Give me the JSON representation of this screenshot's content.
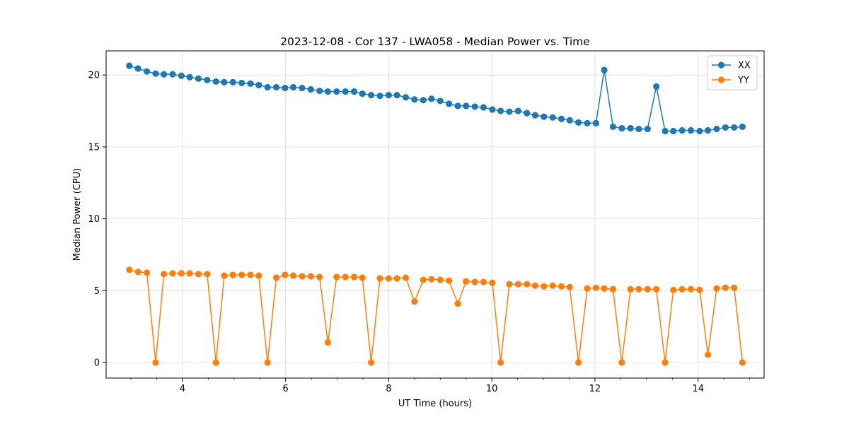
{
  "chart_data": {
    "type": "line",
    "title": "2023-12-08 - Cor 137 - LWA058 - Median Power vs. Time",
    "xlabel": "UT Time (hours)",
    "ylabel": "Median Power (CPU)",
    "xlim": [
      2.52,
      15.28
    ],
    "ylim": [
      -1.08,
      21.68
    ],
    "xticks": [
      4,
      6,
      8,
      10,
      12,
      14
    ],
    "xtick_labels": [
      "4",
      "6",
      "8",
      "10",
      "12",
      "14"
    ],
    "yticks": [
      0,
      5,
      10,
      15,
      20
    ],
    "ytick_labels": [
      "0",
      "5",
      "10",
      "15",
      "20"
    ],
    "grid": true,
    "legend_position": "top-right",
    "x": [
      2.97,
      3.14,
      3.31,
      3.48,
      3.64,
      3.81,
      3.98,
      4.14,
      4.31,
      4.48,
      4.65,
      4.81,
      4.98,
      5.15,
      5.32,
      5.48,
      5.65,
      5.82,
      5.99,
      6.15,
      6.32,
      6.49,
      6.66,
      6.82,
      6.99,
      7.16,
      7.33,
      7.49,
      7.66,
      7.83,
      8.0,
      8.16,
      8.33,
      8.5,
      8.67,
      8.83,
      9.0,
      9.17,
      9.34,
      9.5,
      9.67,
      9.84,
      10.01,
      10.17,
      10.34,
      10.51,
      10.68,
      10.84,
      11.01,
      11.18,
      11.35,
      11.51,
      11.68,
      11.85,
      12.02,
      12.18,
      12.35,
      12.52,
      12.69,
      12.85,
      13.02,
      13.19,
      13.36,
      13.52,
      13.69,
      13.86,
      14.03,
      14.19,
      14.36,
      14.53,
      14.7,
      14.86
    ],
    "series": [
      {
        "name": "XX",
        "color": "#1f77b4",
        "values": [
          20.65,
          20.45,
          20.25,
          20.1,
          20.05,
          20.05,
          19.95,
          19.85,
          19.75,
          19.65,
          19.55,
          19.5,
          19.5,
          19.45,
          19.4,
          19.3,
          19.15,
          19.15,
          19.1,
          19.15,
          19.1,
          19.0,
          18.9,
          18.85,
          18.85,
          18.85,
          18.85,
          18.7,
          18.6,
          18.55,
          18.6,
          18.6,
          18.45,
          18.3,
          18.25,
          18.35,
          18.2,
          18.0,
          17.85,
          17.85,
          17.8,
          17.75,
          17.6,
          17.5,
          17.45,
          17.5,
          17.35,
          17.2,
          17.1,
          17.05,
          16.95,
          16.85,
          16.7,
          16.65,
          16.65,
          20.35,
          16.4,
          16.3,
          16.3,
          16.25,
          16.25,
          19.2,
          16.1,
          16.1,
          16.15,
          16.15,
          16.1,
          16.15,
          16.25,
          16.35,
          16.35,
          16.4
        ]
      },
      {
        "name": "YY",
        "color": "#ff7f0e",
        "values": [
          6.45,
          6.3,
          6.25,
          0.0,
          6.15,
          6.2,
          6.2,
          6.2,
          6.15,
          6.15,
          0.0,
          6.05,
          6.1,
          6.1,
          6.1,
          6.05,
          0.0,
          5.9,
          6.1,
          6.05,
          6.0,
          6.0,
          5.95,
          1.4,
          5.95,
          5.95,
          5.95,
          5.9,
          0.0,
          5.85,
          5.85,
          5.85,
          5.9,
          4.25,
          5.75,
          5.8,
          5.75,
          5.7,
          4.1,
          5.65,
          5.6,
          5.6,
          5.55,
          0.0,
          5.45,
          5.45,
          5.45,
          5.35,
          5.3,
          5.35,
          5.3,
          5.25,
          0.0,
          5.15,
          5.2,
          5.15,
          5.1,
          0.0,
          5.1,
          5.1,
          5.1,
          5.1,
          0.0,
          5.05,
          5.1,
          5.1,
          5.05,
          0.55,
          5.15,
          5.2,
          5.2,
          0.0
        ]
      }
    ]
  }
}
